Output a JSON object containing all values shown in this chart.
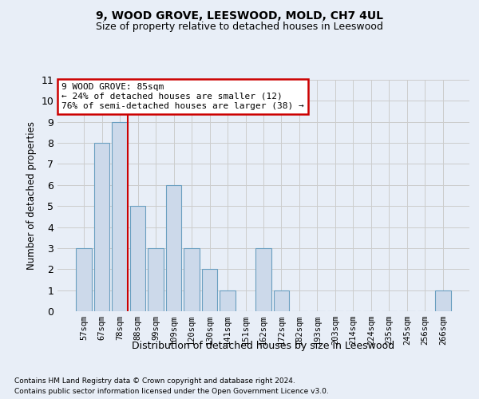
{
  "title1": "9, WOOD GROVE, LEESWOOD, MOLD, CH7 4UL",
  "title2": "Size of property relative to detached houses in Leeswood",
  "xlabel": "Distribution of detached houses by size in Leeswood",
  "ylabel": "Number of detached properties",
  "footnote1": "Contains HM Land Registry data © Crown copyright and database right 2024.",
  "footnote2": "Contains public sector information licensed under the Open Government Licence v3.0.",
  "annotation_title": "9 WOOD GROVE: 85sqm",
  "annotation_line1": "← 24% of detached houses are smaller (12)",
  "annotation_line2": "76% of semi-detached houses are larger (38) →",
  "categories": [
    "57sqm",
    "67sqm",
    "78sqm",
    "88sqm",
    "99sqm",
    "109sqm",
    "120sqm",
    "130sqm",
    "141sqm",
    "151sqm",
    "162sqm",
    "172sqm",
    "182sqm",
    "193sqm",
    "203sqm",
    "214sqm",
    "224sqm",
    "235sqm",
    "245sqm",
    "256sqm",
    "266sqm"
  ],
  "values": [
    3,
    8,
    9,
    5,
    3,
    6,
    3,
    2,
    1,
    0,
    3,
    1,
    0,
    0,
    0,
    0,
    0,
    0,
    0,
    0,
    1
  ],
  "bar_color": "#ccd9ea",
  "bar_edge_color": "#6a9fc0",
  "redline_index": 2,
  "ylim": [
    0,
    11
  ],
  "yticks": [
    0,
    1,
    2,
    3,
    4,
    5,
    6,
    7,
    8,
    9,
    10,
    11
  ],
  "grid_color": "#cccccc",
  "annotation_box_color": "#ffffff",
  "annotation_box_edge": "#cc0000",
  "background_color": "#e8eef7"
}
